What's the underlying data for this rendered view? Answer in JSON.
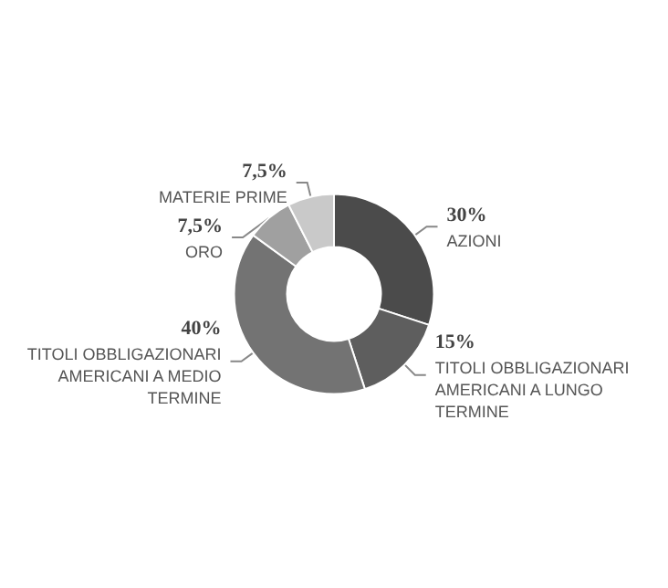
{
  "chart_data": {
    "type": "donut",
    "categories": [
      "AZIONI",
      "TITOLI OBBLIGAZIONARI AMERICANI A LUNGO TERMINE",
      "TITOLI OBBLIGAZIONARI AMERICANI A MEDIO TERMINE",
      "ORO",
      "MATERIE PRIME"
    ],
    "values": [
      30,
      15,
      40,
      7.5,
      7.5
    ],
    "value_labels": [
      "30%",
      "15%",
      "40%",
      "7,5%",
      "7,5%"
    ],
    "colors": [
      "#4b4b4b",
      "#5e5e5e",
      "#737373",
      "#a0a0a0",
      "#c9c9c9"
    ],
    "legend": false
  }
}
